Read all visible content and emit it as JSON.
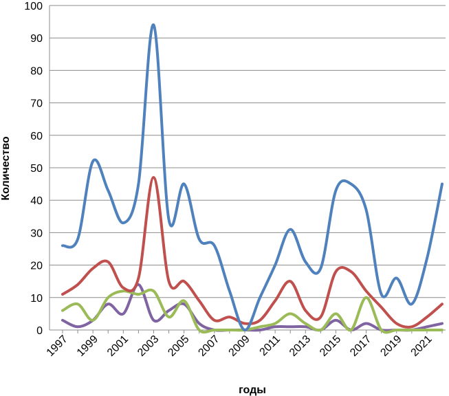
{
  "chart_data": {
    "type": "line",
    "title": "",
    "xlabel": "годы",
    "ylabel": "Количество",
    "ylim": [
      0,
      100
    ],
    "yticks": [
      0,
      10,
      20,
      30,
      40,
      50,
      60,
      70,
      80,
      90,
      100
    ],
    "x": [
      1997,
      1998,
      1999,
      2000,
      2001,
      2002,
      2003,
      2004,
      2005,
      2006,
      2007,
      2008,
      2009,
      2010,
      2011,
      2012,
      2013,
      2014,
      2015,
      2016,
      2017,
      2018,
      2019,
      2020,
      2021,
      2022
    ],
    "xtick_labels": [
      "1997",
      "1999",
      "2001",
      "2003",
      "2005",
      "2007",
      "2009",
      "2011",
      "2013",
      "2015",
      "2017",
      "2019",
      "2021"
    ],
    "grid": "horizontal",
    "legend": "none",
    "series": [
      {
        "color": "#4F81BD",
        "values": [
          26,
          28,
          52,
          43,
          33,
          45,
          94,
          34,
          45,
          28,
          26,
          12,
          0,
          10,
          20,
          31,
          21,
          19,
          43,
          45,
          37,
          11,
          16,
          8,
          22,
          45
        ]
      },
      {
        "color": "#C0504D",
        "values": [
          11,
          14,
          19,
          21,
          13,
          16,
          47,
          15,
          15,
          9,
          3,
          4,
          2,
          3,
          9,
          15,
          6,
          4,
          18,
          18,
          12,
          7,
          2,
          1,
          4,
          8
        ]
      },
      {
        "color": "#9BBB59",
        "values": [
          6,
          8,
          3,
          10,
          12,
          11,
          12,
          4,
          9,
          0,
          0,
          0,
          0,
          1,
          2,
          5,
          2,
          0,
          5,
          0,
          10,
          0,
          0,
          0,
          0,
          0
        ]
      },
      {
        "color": "#8064A2",
        "values": [
          3,
          1,
          3,
          8,
          5,
          14,
          3,
          6,
          8,
          2,
          0,
          0,
          0,
          0,
          1,
          1,
          1,
          0,
          3,
          0,
          2,
          0,
          0,
          0,
          1,
          2
        ]
      }
    ]
  }
}
